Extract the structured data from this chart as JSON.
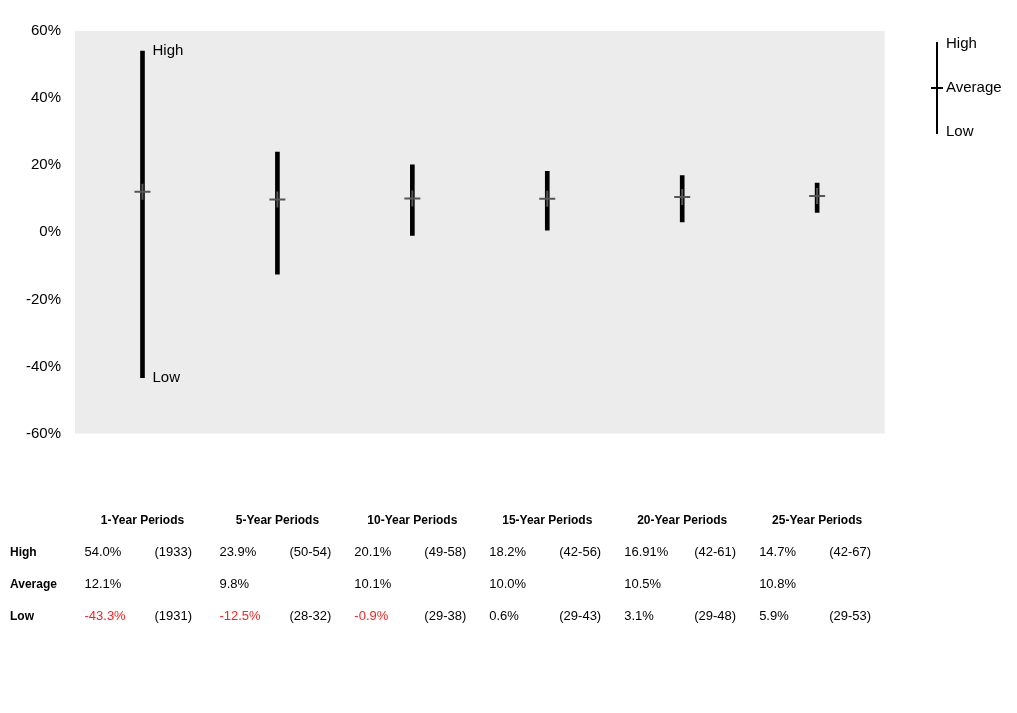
{
  "chart_data": {
    "type": "bar",
    "categories": [
      "1-Year Periods",
      "5-Year Periods",
      "10-Year Periods",
      "15-Year Periods",
      "20-Year Periods",
      "25-Year Periods"
    ],
    "series": [
      {
        "color": "#000000",
        "base": [
          -43.3,
          -12.5,
          -0.9,
          0.6,
          3.1,
          5.9
        ],
        "values": [
          97.3,
          36.4,
          21.0,
          17.6,
          13.81,
          8.8
        ]
      },
      {
        "type": "scatter",
        "color": "#555555",
        "marker": "cross",
        "values": [
          12.1,
          9.8,
          10.1,
          10.0,
          10.5,
          10.8
        ],
        "value_labels": [
          "12.1%",
          "9.8%",
          "10.1%",
          "10.0%",
          "10.5%",
          "10.8%"
        ]
      }
    ],
    "ylim": [
      -60,
      60
    ],
    "yticks": [
      {
        "value": -60,
        "label": "-60%"
      },
      {
        "value": -40,
        "label": "-40%"
      },
      {
        "value": -20,
        "label": "-20%"
      },
      {
        "value": 0,
        "label": "0%"
      },
      {
        "value": 20,
        "label": "20%"
      },
      {
        "value": 40,
        "label": "40%"
      },
      {
        "value": 60,
        "label": "60%"
      }
    ],
    "annotations": [
      "High",
      "Average",
      "Low",
      "High",
      "Low",
      "54.0%",
      "(1933)",
      "-43.3%",
      "(1931)",
      "23.9%",
      "(50-54)",
      "-12.5%",
      "(28-32)",
      "20.1%",
      "(49-58)",
      "-0.9%",
      "(29-38)",
      "18.2%",
      "(42-56)",
      "0.6%",
      "(29-43)",
      "16.91%",
      "(42-61)",
      "3.1%",
      "(29-48)",
      "14.7%",
      "(42-67)",
      "5.9%",
      "(29-53)"
    ]
  }
}
